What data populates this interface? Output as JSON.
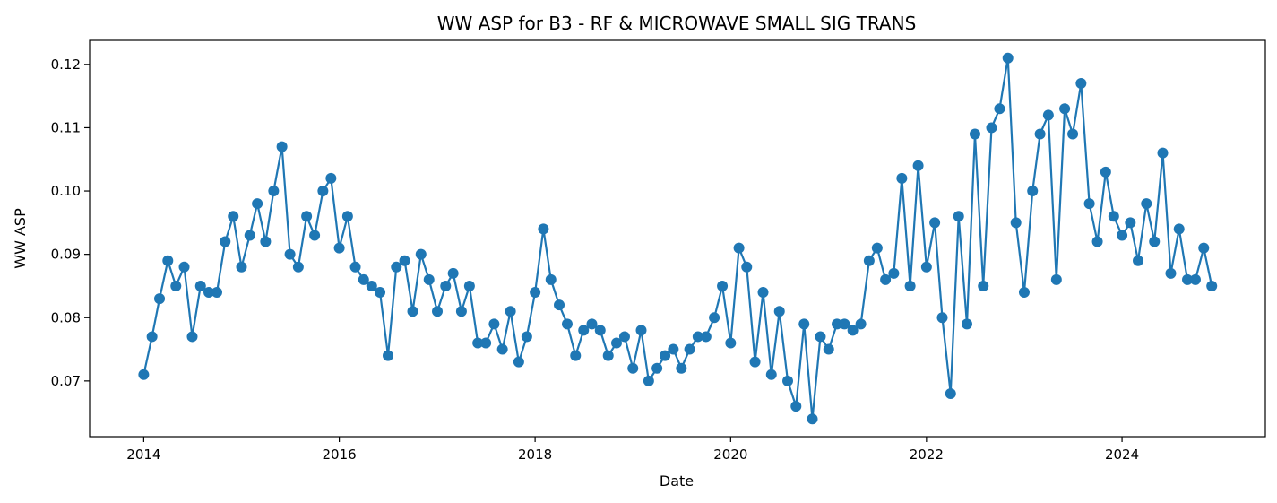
{
  "chart_data": {
    "type": "line",
    "title": "WW ASP for B3 - RF & MICROWAVE SMALL SIG TRANS",
    "xlabel": "Date",
    "ylabel": "WW ASP",
    "x_axis": "date",
    "xlim": [
      "2013-06-13",
      "2025-06-19"
    ],
    "ylim": [
      0.0612,
      0.1238
    ],
    "x_ticks": [
      {
        "value": "2014-01-01",
        "label": "2014"
      },
      {
        "value": "2016-01-01",
        "label": "2016"
      },
      {
        "value": "2018-01-01",
        "label": "2018"
      },
      {
        "value": "2020-01-01",
        "label": "2020"
      },
      {
        "value": "2022-01-01",
        "label": "2022"
      },
      {
        "value": "2024-01-01",
        "label": "2024"
      }
    ],
    "y_ticks": [
      {
        "value": 0.07,
        "label": "0.07"
      },
      {
        "value": 0.08,
        "label": "0.08"
      },
      {
        "value": 0.09,
        "label": "0.09"
      },
      {
        "value": 0.1,
        "label": "0.10"
      },
      {
        "value": 0.11,
        "label": "0.11"
      },
      {
        "value": 0.12,
        "label": "0.12"
      }
    ],
    "grid": false,
    "legend": "none",
    "color": "#1f77b4",
    "series": [
      {
        "x": [
          "2014-01",
          "2014-02",
          "2014-03",
          "2014-04",
          "2014-05",
          "2014-06",
          "2014-07",
          "2014-08",
          "2014-09",
          "2014-10",
          "2014-11",
          "2014-12",
          "2015-01",
          "2015-02",
          "2015-03",
          "2015-04",
          "2015-05",
          "2015-06",
          "2015-07",
          "2015-08",
          "2015-09",
          "2015-10",
          "2015-11",
          "2015-12",
          "2016-01",
          "2016-02",
          "2016-03",
          "2016-04",
          "2016-05",
          "2016-06",
          "2016-07",
          "2016-08",
          "2016-09",
          "2016-10",
          "2016-11",
          "2016-12",
          "2017-01",
          "2017-02",
          "2017-03",
          "2017-04",
          "2017-05",
          "2017-06",
          "2017-07",
          "2017-08",
          "2017-09",
          "2017-10",
          "2017-11",
          "2017-12",
          "2018-01",
          "2018-02",
          "2018-03",
          "2018-04",
          "2018-05",
          "2018-06",
          "2018-07",
          "2018-08",
          "2018-09",
          "2018-10",
          "2018-11",
          "2018-12",
          "2019-01",
          "2019-02",
          "2019-03",
          "2019-04",
          "2019-05",
          "2019-06",
          "2019-07",
          "2019-08",
          "2019-09",
          "2019-10",
          "2019-11",
          "2019-12",
          "2020-01",
          "2020-02",
          "2020-03",
          "2020-04",
          "2020-05",
          "2020-06",
          "2020-07",
          "2020-08",
          "2020-09",
          "2020-10",
          "2020-11",
          "2020-12",
          "2021-01",
          "2021-02",
          "2021-03",
          "2021-04",
          "2021-05",
          "2021-06",
          "2021-07",
          "2021-08",
          "2021-09",
          "2021-10",
          "2021-11",
          "2021-12",
          "2022-01",
          "2022-02",
          "2022-03",
          "2022-04",
          "2022-05",
          "2022-06",
          "2022-07",
          "2022-08",
          "2022-09",
          "2022-10",
          "2022-11",
          "2022-12",
          "2023-01",
          "2023-02",
          "2023-03",
          "2023-04",
          "2023-05",
          "2023-06",
          "2023-07",
          "2023-08",
          "2023-09",
          "2023-10",
          "2023-11",
          "2023-12",
          "2024-01",
          "2024-02",
          "2024-03",
          "2024-04",
          "2024-05",
          "2024-06",
          "2024-07",
          "2024-08",
          "2024-09",
          "2024-10",
          "2024-11",
          "2024-12"
        ],
        "y": [
          0.071,
          0.077,
          0.083,
          0.089,
          0.085,
          0.088,
          0.077,
          0.085,
          0.084,
          0.084,
          0.092,
          0.096,
          0.088,
          0.093,
          0.098,
          0.092,
          0.1,
          0.107,
          0.09,
          0.088,
          0.096,
          0.093,
          0.1,
          0.102,
          0.091,
          0.096,
          0.088,
          0.086,
          0.085,
          0.084,
          0.074,
          0.088,
          0.089,
          0.081,
          0.09,
          0.086,
          0.081,
          0.085,
          0.087,
          0.081,
          0.085,
          0.076,
          0.076,
          0.079,
          0.075,
          0.081,
          0.073,
          0.077,
          0.084,
          0.094,
          0.086,
          0.082,
          0.079,
          0.074,
          0.078,
          0.079,
          0.078,
          0.074,
          0.076,
          0.077,
          0.072,
          0.078,
          0.07,
          0.072,
          0.074,
          0.075,
          0.072,
          0.075,
          0.077,
          0.077,
          0.08,
          0.085,
          0.076,
          0.091,
          0.088,
          0.073,
          0.084,
          0.071,
          0.081,
          0.07,
          0.066,
          0.079,
          0.064,
          0.077,
          0.075,
          0.079,
          0.079,
          0.078,
          0.079,
          0.089,
          0.091,
          0.086,
          0.087,
          0.102,
          0.085,
          0.104,
          0.088,
          0.095,
          0.08,
          0.068,
          0.096,
          0.079,
          0.109,
          0.085,
          0.11,
          0.113,
          0.121,
          0.095,
          0.084,
          0.1,
          0.109,
          0.112,
          0.086,
          0.113,
          0.109,
          0.117,
          0.098,
          0.092,
          0.103,
          0.096,
          0.093,
          0.095,
          0.089,
          0.098,
          0.092,
          0.106,
          0.087,
          0.094,
          0.086,
          0.086,
          0.091,
          0.085
        ]
      }
    ]
  }
}
